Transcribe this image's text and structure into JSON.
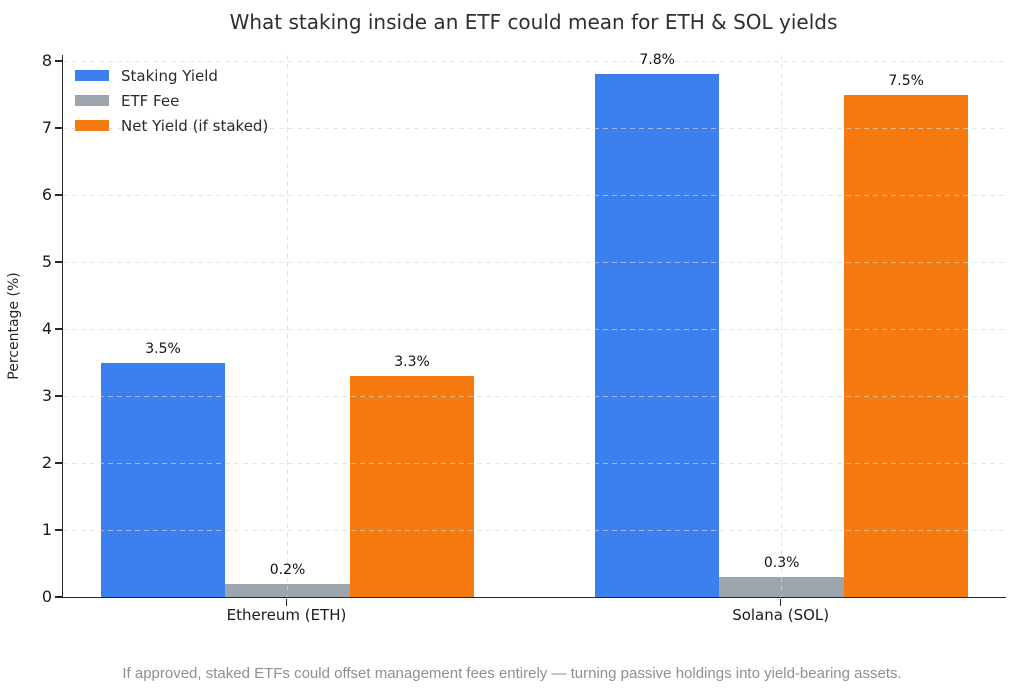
{
  "chart": {
    "title": "What staking inside an ETF could mean for ETH & SOL yields",
    "ylabel": "Percentage (%)",
    "footer": "If approved, staked ETFs could offset management fees entirely — turning passive holdings into yield-bearing assets.",
    "colors": {
      "staking": "#3c80f0",
      "fee": "#9da5af",
      "net": "#f5790f",
      "grid": "#d6d6d6",
      "spine": "#262626",
      "title_text": "#2f2f2f",
      "footer_text": "#8f8f8f"
    }
  },
  "chart_data": {
    "type": "bar",
    "categories": [
      "Ethereum (ETH)",
      "Solana (SOL)"
    ],
    "series": [
      {
        "name": "Staking Yield",
        "color_key": "staking",
        "values": [
          3.5,
          7.8
        ],
        "labels": [
          "3.5%",
          "7.8%"
        ]
      },
      {
        "name": "ETF Fee",
        "color_key": "fee",
        "values": [
          0.2,
          0.3
        ],
        "labels": [
          "0.2%",
          "0.3%"
        ]
      },
      {
        "name": "Net Yield (if staked)",
        "color_key": "net",
        "values": [
          3.3,
          7.5
        ],
        "labels": [
          "3.3%",
          "7.5%"
        ]
      }
    ],
    "title": "What staking inside an ETF could mean for ETH & SOL yields",
    "xlabel": "",
    "ylabel": "Percentage (%)",
    "ylim": [
      0,
      8
    ],
    "yticks": [
      0,
      1,
      2,
      3,
      4,
      5,
      6,
      7,
      8
    ],
    "grid": "dashed-both-axes-above-bars",
    "legend_position": "upper-left-inside-no-frame",
    "annotation": "If approved, staked ETFs could offset management fees entirely — turning passive holdings into yield-bearing assets."
  }
}
